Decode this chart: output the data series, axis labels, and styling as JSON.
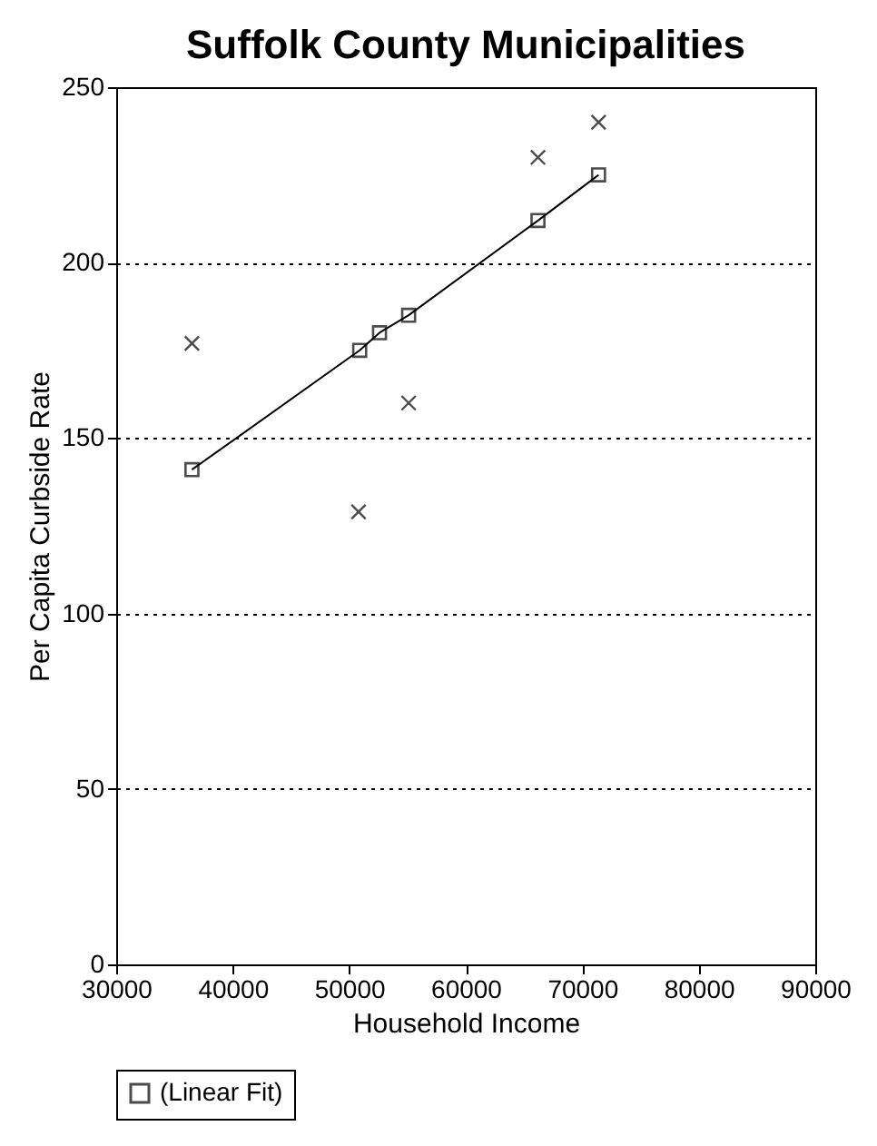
{
  "chart_data": {
    "type": "scatter",
    "title": "Suffolk County Municipalities",
    "xlabel": "Household Income",
    "ylabel": "Per Capita Curbside Rate",
    "series": [
      {
        "marker": "cross",
        "color": "#000000",
        "x": [
          36500,
          50800,
          55100,
          66200,
          71400
        ],
        "values": [
          177,
          129,
          160,
          230,
          240
        ]
      },
      {
        "type": "line",
        "name": "(Linear Fit)",
        "marker": "square",
        "color": "#000000",
        "x": [
          36500,
          50900,
          52600,
          55100,
          66200,
          71400
        ],
        "values": [
          141,
          175,
          180,
          185,
          212,
          225
        ]
      }
    ],
    "xlim": [
      30000,
      90000
    ],
    "xticks": [
      30000,
      40000,
      50000,
      60000,
      70000,
      80000,
      90000
    ],
    "ylim": [
      0,
      250
    ],
    "yticks": [
      0,
      50,
      100,
      150,
      200,
      250
    ],
    "grid": "y",
    "legend": "bottom"
  }
}
